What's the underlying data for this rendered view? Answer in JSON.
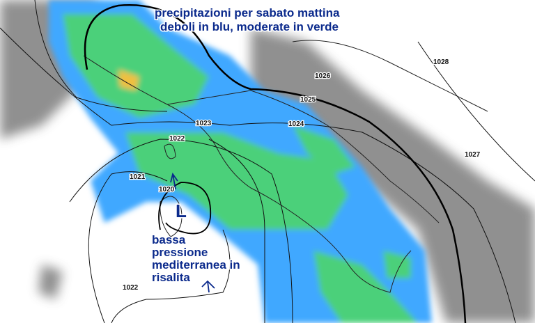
{
  "annotation": {
    "lines": [
      "precipitazioni per sabato mattina",
      "deboli in blu, moderate in verde"
    ]
  },
  "low": {
    "symbol": "L",
    "caption": [
      "bassa",
      "pressione",
      "mediterranea in",
      "risalita"
    ]
  },
  "isobars": {
    "labels": [
      1028,
      1026,
      1025,
      1024,
      1023,
      1022,
      1021,
      1020,
      1027,
      1022
    ]
  }
}
